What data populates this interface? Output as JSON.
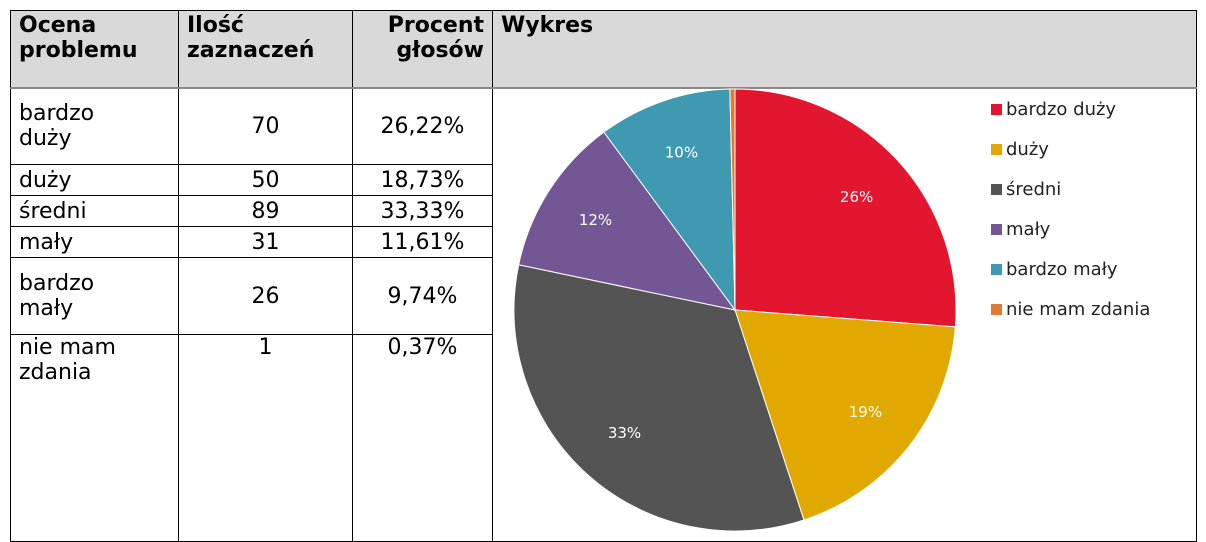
{
  "table": {
    "header": [
      "Ocena problemu",
      "Ilość zaznaczeń",
      "Procent głosów",
      "Wykres"
    ],
    "rows": [
      [
        "bardzo duży",
        "70",
        "26,22%"
      ],
      [
        "duży",
        "50",
        "18,73%"
      ],
      [
        "średni",
        "89",
        "33,33%"
      ],
      [
        "mały",
        "31",
        "11,61%"
      ],
      [
        "bardzo mały",
        "26",
        "9,74%"
      ],
      [
        "nie mam zdania",
        "1",
        "0,37%"
      ]
    ]
  },
  "chart_data": {
    "type": "pie",
    "categories": [
      "bardzo duży",
      "duży",
      "średni",
      "mały",
      "bardzo mały",
      "nie mam zdania"
    ],
    "values": [
      26.22,
      18.73,
      33.33,
      11.61,
      9.74,
      0.37
    ],
    "value_labels": [
      "26%",
      "19%",
      "33%",
      "12%",
      "10%",
      null
    ],
    "colors": [
      "#e2162f",
      "#e1a900",
      "#545454",
      "#735794",
      "#3e99b1",
      "#e07a2e"
    ],
    "legend": "right"
  }
}
